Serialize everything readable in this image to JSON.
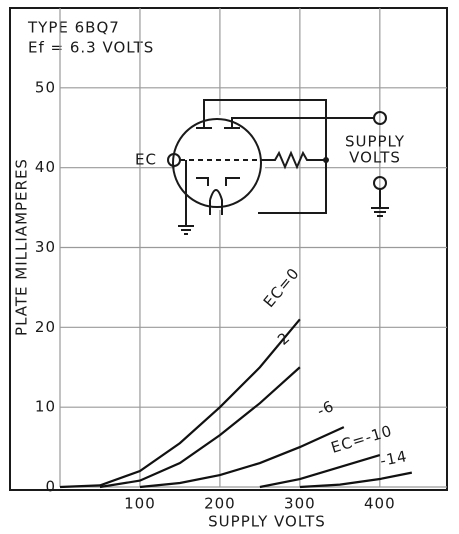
{
  "chart_data": {
    "type": "line",
    "title": "TYPE 6BQ7",
    "subtitle": "Ef = 6.3 VOLTS",
    "xlabel": "SUPPLY VOLTS",
    "ylabel": "PLATE MILLIAMPERES",
    "circuit_labels": [
      "EC",
      "SUPPLY",
      "VOLTS"
    ],
    "xlim": [
      0,
      484
    ],
    "ylim": [
      0,
      60
    ],
    "xticks": [
      0,
      100,
      200,
      300,
      400
    ],
    "yticks": [
      0,
      10,
      20,
      30,
      40,
      50
    ],
    "grid": true,
    "series": [
      {
        "name": "EC=0",
        "color": "#111111",
        "x": [
          0,
          50,
          100,
          150,
          200,
          250,
          300
        ],
        "values": [
          0,
          0.2,
          2,
          5.5,
          10,
          15,
          21
        ]
      },
      {
        "name": "-2",
        "color": "#111111",
        "x": [
          50,
          100,
          150,
          200,
          250,
          300
        ],
        "values": [
          0,
          0.8,
          3,
          6.5,
          10.5,
          15
        ]
      },
      {
        "name": "-6",
        "color": "#111111",
        "x": [
          100,
          150,
          200,
          250,
          300,
          355
        ],
        "values": [
          0,
          0.5,
          1.5,
          3,
          5,
          7.5
        ]
      },
      {
        "name": "EC=-10",
        "color": "#111111",
        "x": [
          250,
          300,
          350,
          400
        ],
        "values": [
          0,
          1,
          2.5,
          4
        ]
      },
      {
        "name": "-14",
        "color": "#111111",
        "x": [
          300,
          350,
          400,
          440
        ],
        "values": [
          0,
          0.3,
          1,
          1.8
        ]
      }
    ]
  }
}
